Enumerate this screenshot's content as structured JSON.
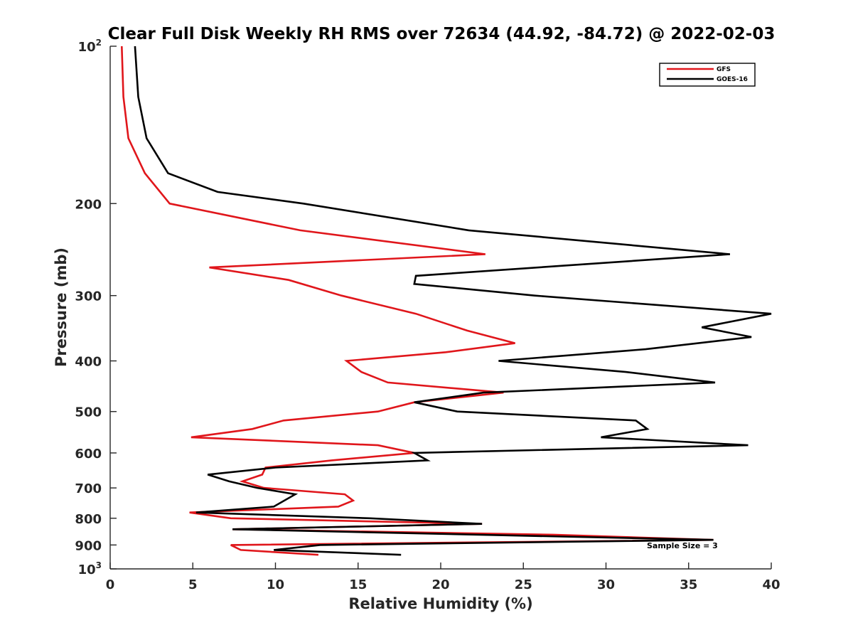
{
  "chart_data": {
    "type": "line",
    "title": "Clear Full Disk Weekly RH RMS over 72634 (44.92, -84.72) @ 2022-02-03",
    "xlabel": "Relative Humidity (%)",
    "ylabel": "Pressure (mb)",
    "xlim": [
      0,
      40
    ],
    "ylim": [
      100,
      1000
    ],
    "yscale": "log",
    "yreversed": true,
    "grid": false,
    "x_ticks": [
      0,
      5,
      10,
      15,
      20,
      25,
      30,
      35,
      40
    ],
    "x_tick_labels": [
      "0",
      "5",
      "10",
      "15",
      "20",
      "25",
      "30",
      "35",
      "40"
    ],
    "y_ticks": [
      100,
      200,
      300,
      400,
      500,
      600,
      700,
      800,
      900,
      1000
    ],
    "y_tick_labels": [
      {
        "base": "10",
        "exp": "2"
      },
      {
        "base": "200",
        "exp": ""
      },
      {
        "base": "300",
        "exp": ""
      },
      {
        "base": "400",
        "exp": ""
      },
      {
        "base": "500",
        "exp": ""
      },
      {
        "base": "600",
        "exp": ""
      },
      {
        "base": "700",
        "exp": ""
      },
      {
        "base": "800",
        "exp": ""
      },
      {
        "base": "900",
        "exp": ""
      },
      {
        "base": "10",
        "exp": "3"
      }
    ],
    "legend_position": "top-right",
    "annotation": "Sample Size = 3",
    "series": [
      {
        "name": "GFS",
        "color": "#e0161b",
        "points": [
          [
            0.7,
            100
          ],
          [
            0.8,
            125
          ],
          [
            1.1,
            150
          ],
          [
            2.1,
            175
          ],
          [
            3.6,
            200
          ],
          [
            11.5,
            225
          ],
          [
            22.7,
            250
          ],
          [
            6.0,
            265
          ],
          [
            10.8,
            280
          ],
          [
            14.0,
            300
          ],
          [
            18.5,
            325
          ],
          [
            21.6,
            350
          ],
          [
            24.5,
            370
          ],
          [
            20.3,
            385
          ],
          [
            14.3,
            400
          ],
          [
            15.2,
            420
          ],
          [
            16.8,
            440
          ],
          [
            23.8,
            460
          ],
          [
            18.4,
            480
          ],
          [
            16.2,
            500
          ],
          [
            10.5,
            520
          ],
          [
            8.6,
            540
          ],
          [
            4.9,
            560
          ],
          [
            16.2,
            580
          ],
          [
            18.4,
            600
          ],
          [
            13.4,
            620
          ],
          [
            9.4,
            640
          ],
          [
            9.2,
            660
          ],
          [
            8.0,
            680
          ],
          [
            9.3,
            700
          ],
          [
            14.2,
            720
          ],
          [
            14.7,
            740
          ],
          [
            13.8,
            760
          ],
          [
            4.8,
            780
          ],
          [
            7.3,
            800
          ],
          [
            22.5,
            820
          ],
          [
            7.4,
            840
          ],
          [
            26.8,
            860
          ],
          [
            36.5,
            880
          ],
          [
            7.3,
            900
          ],
          [
            7.9,
            920
          ],
          [
            12.6,
            940
          ]
        ]
      },
      {
        "name": "GOES-16",
        "color": "#000000",
        "points": [
          [
            1.5,
            100
          ],
          [
            1.7,
            125
          ],
          [
            2.2,
            150
          ],
          [
            3.5,
            175
          ],
          [
            6.5,
            190
          ],
          [
            11.7,
            200
          ],
          [
            21.7,
            225
          ],
          [
            37.5,
            250
          ],
          [
            18.5,
            275
          ],
          [
            18.4,
            285
          ],
          [
            25.7,
            300
          ],
          [
            40.0,
            325
          ],
          [
            35.8,
            345
          ],
          [
            38.8,
            360
          ],
          [
            32.4,
            380
          ],
          [
            23.5,
            400
          ],
          [
            31.2,
            420
          ],
          [
            36.6,
            440
          ],
          [
            22.6,
            460
          ],
          [
            18.4,
            480
          ],
          [
            21.0,
            500
          ],
          [
            31.8,
            520
          ],
          [
            32.5,
            540
          ],
          [
            29.7,
            560
          ],
          [
            38.6,
            580
          ],
          [
            18.4,
            600
          ],
          [
            19.2,
            620
          ],
          [
            10.0,
            640
          ],
          [
            5.9,
            660
          ],
          [
            7.2,
            680
          ],
          [
            8.9,
            700
          ],
          [
            11.2,
            720
          ],
          [
            9.9,
            760
          ],
          [
            5.2,
            780
          ],
          [
            15.7,
            800
          ],
          [
            22.5,
            820
          ],
          [
            7.4,
            840
          ],
          [
            36.5,
            880
          ],
          [
            12.7,
            900
          ],
          [
            9.9,
            920
          ],
          [
            17.6,
            940
          ]
        ]
      }
    ]
  }
}
